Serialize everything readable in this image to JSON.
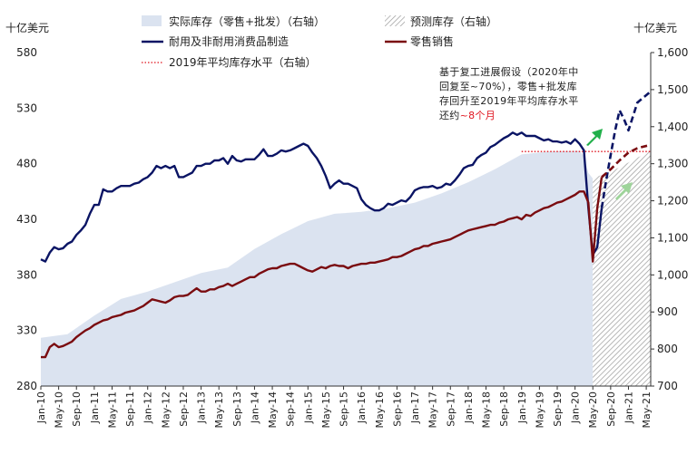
{
  "chart_data": {
    "type": "line",
    "unit_left": "十亿美元",
    "unit_right": "十亿美元",
    "left_axis": {
      "range": [
        280,
        580
      ],
      "ticks": [
        280,
        330,
        380,
        430,
        480,
        530,
        580
      ]
    },
    "right_axis": {
      "range": [
        700,
        1600
      ],
      "ticks": [
        "700",
        "800",
        "900",
        "1,000",
        "1,100",
        "1,200",
        "1,300",
        "1,400",
        "1,500",
        "1,600"
      ]
    },
    "x_tick_labels": [
      "Jan-10",
      "May-10",
      "Sep-10",
      "Jan-11",
      "May-11",
      "Sep-11",
      "Jan-12",
      "May-12",
      "Sep-12",
      "Jan-13",
      "May-13",
      "Sep-13",
      "Jan-14",
      "May-14",
      "Sep-14",
      "Jan-15",
      "May-15",
      "Sep-15",
      "Jan-16",
      "May-16",
      "Sep-16",
      "Jan-17",
      "May-17",
      "Sep-17",
      "Jan-18",
      "May-18",
      "Sep-18",
      "Jan-19",
      "May-19",
      "Sep-19",
      "Jan-20",
      "May-20",
      "Sep-20",
      "Jan-21",
      "May-21"
    ],
    "x_start": "2010-01",
    "x_end": "2021-06",
    "legend": {
      "inventory": "实际库存（零售+批发）（右轴）",
      "forecast": "预测库存（右轴）",
      "durable": "耐用及非耐用消费品制造",
      "retail": "零售销售",
      "avg": "2019年平均库存水平（右轴）"
    },
    "annotation": {
      "line1": "基于复工进展假设（2020年中",
      "line2": "回复至~70%），零售+批发库",
      "line3": "存回升至2019年平均库存水平",
      "line4_prefix": "还约",
      "line4_highlight": "~8个月"
    },
    "avg_inventory_2019": 1333,
    "series": [
      {
        "name": "实际库存（零售+批发）（右轴）",
        "axis": "right",
        "type": "area",
        "x": [
          "2010-01",
          "2010-07",
          "2011-01",
          "2011-07",
          "2012-01",
          "2012-07",
          "2013-01",
          "2013-07",
          "2014-01",
          "2014-07",
          "2015-01",
          "2015-07",
          "2016-01",
          "2016-07",
          "2017-01",
          "2017-07",
          "2018-01",
          "2018-07",
          "2019-01",
          "2019-07",
          "2020-01",
          "2020-02",
          "2020-03",
          "2020-04",
          "2020-05"
        ],
        "values": [
          830,
          840,
          890,
          935,
          955,
          980,
          1005,
          1020,
          1070,
          1110,
          1145,
          1165,
          1170,
          1180,
          1195,
          1220,
          1250,
          1285,
          1325,
          1333,
          1335,
          1335,
          1320,
          1275,
          1260
        ]
      },
      {
        "name": "预测库存（右轴）",
        "axis": "right",
        "type": "area",
        "x": [
          "2020-05",
          "2020-08",
          "2020-11",
          "2021-02",
          "2021-06"
        ],
        "values": [
          1260,
          1275,
          1290,
          1310,
          1335
        ]
      },
      {
        "name": "耐用及非耐用消费品制造",
        "axis": "left",
        "x": [
          "2010-01",
          "2010-02",
          "2010-03",
          "2010-04",
          "2010-05",
          "2010-06",
          "2010-07",
          "2010-08",
          "2010-09",
          "2010-10",
          "2010-11",
          "2010-12",
          "2011-01",
          "2011-02",
          "2011-03",
          "2011-04",
          "2011-05",
          "2011-06",
          "2011-07",
          "2011-08",
          "2011-09",
          "2011-10",
          "2011-11",
          "2011-12",
          "2012-01",
          "2012-02",
          "2012-03",
          "2012-04",
          "2012-05",
          "2012-06",
          "2012-07",
          "2012-08",
          "2012-09",
          "2012-10",
          "2012-11",
          "2012-12",
          "2013-01",
          "2013-02",
          "2013-03",
          "2013-04",
          "2013-05",
          "2013-06",
          "2013-07",
          "2013-08",
          "2013-09",
          "2013-10",
          "2013-11",
          "2013-12",
          "2014-01",
          "2014-02",
          "2014-03",
          "2014-04",
          "2014-05",
          "2014-06",
          "2014-07",
          "2014-08",
          "2014-09",
          "2014-10",
          "2014-11",
          "2014-12",
          "2015-01",
          "2015-02",
          "2015-03",
          "2015-04",
          "2015-05",
          "2015-06",
          "2015-07",
          "2015-08",
          "2015-09",
          "2015-10",
          "2015-11",
          "2015-12",
          "2016-01",
          "2016-02",
          "2016-03",
          "2016-04",
          "2016-05",
          "2016-06",
          "2016-07",
          "2016-08",
          "2016-09",
          "2016-10",
          "2016-11",
          "2016-12",
          "2017-01",
          "2017-02",
          "2017-03",
          "2017-04",
          "2017-05",
          "2017-06",
          "2017-07",
          "2017-08",
          "2017-09",
          "2017-10",
          "2017-11",
          "2017-12",
          "2018-01",
          "2018-02",
          "2018-03",
          "2018-04",
          "2018-05",
          "2018-06",
          "2018-07",
          "2018-08",
          "2018-09",
          "2018-10",
          "2018-11",
          "2018-12",
          "2019-01",
          "2019-02",
          "2019-03",
          "2019-04",
          "2019-05",
          "2019-06",
          "2019-07",
          "2019-08",
          "2019-09",
          "2019-10",
          "2019-11",
          "2019-12",
          "2020-01",
          "2020-02",
          "2020-03",
          "2020-04",
          "2020-05",
          "2020-06",
          "2020-07"
        ],
        "values": [
          394,
          392,
          400,
          405,
          403,
          404,
          408,
          410,
          416,
          420,
          425,
          435,
          443,
          443,
          457,
          455,
          455,
          458,
          460,
          460,
          460,
          462,
          463,
          466,
          468,
          472,
          478,
          476,
          478,
          476,
          478,
          468,
          468,
          470,
          472,
          478,
          478,
          480,
          480,
          483,
          483,
          485,
          480,
          487,
          483,
          482,
          484,
          484,
          484,
          488,
          493,
          487,
          487,
          489,
          492,
          491,
          492,
          494,
          496,
          498,
          496,
          490,
          485,
          478,
          469,
          458,
          462,
          465,
          462,
          462,
          460,
          458,
          448,
          443,
          440,
          438,
          438,
          440,
          444,
          443,
          445,
          447,
          446,
          450,
          456,
          458,
          459,
          459,
          460,
          458,
          459,
          462,
          461,
          465,
          470,
          476,
          478,
          479,
          485,
          488,
          490,
          495,
          497,
          500,
          503,
          505,
          508,
          506,
          508,
          505,
          505,
          505,
          503,
          501,
          502,
          500,
          500,
          499,
          500,
          498,
          502,
          498,
          492,
          440,
          398,
          405,
          440
        ]
      },
      {
        "name": "耐用及非耐用消费品制造 (预测)",
        "axis": "left",
        "dashed": true,
        "x": [
          "2020-07",
          "2020-08",
          "2020-09",
          "2020-10",
          "2020-11",
          "2020-12",
          "2021-01",
          "2021-03",
          "2021-06"
        ],
        "values": [
          440,
          465,
          488,
          510,
          528,
          520,
          510,
          535,
          545
        ]
      },
      {
        "name": "零售销售",
        "axis": "left",
        "x": [
          "2010-01",
          "2010-02",
          "2010-03",
          "2010-04",
          "2010-05",
          "2010-06",
          "2010-07",
          "2010-08",
          "2010-09",
          "2010-10",
          "2010-11",
          "2010-12",
          "2011-01",
          "2011-02",
          "2011-03",
          "2011-04",
          "2011-05",
          "2011-06",
          "2011-07",
          "2011-08",
          "2011-09",
          "2011-10",
          "2011-11",
          "2011-12",
          "2012-01",
          "2012-02",
          "2012-03",
          "2012-04",
          "2012-05",
          "2012-06",
          "2012-07",
          "2012-08",
          "2012-09",
          "2012-10",
          "2012-11",
          "2012-12",
          "2013-01",
          "2013-02",
          "2013-03",
          "2013-04",
          "2013-05",
          "2013-06",
          "2013-07",
          "2013-08",
          "2013-09",
          "2013-10",
          "2013-11",
          "2013-12",
          "2014-01",
          "2014-02",
          "2014-03",
          "2014-04",
          "2014-05",
          "2014-06",
          "2014-07",
          "2014-08",
          "2014-09",
          "2014-10",
          "2014-11",
          "2014-12",
          "2015-01",
          "2015-02",
          "2015-03",
          "2015-04",
          "2015-05",
          "2015-06",
          "2015-07",
          "2015-08",
          "2015-09",
          "2015-10",
          "2015-11",
          "2015-12",
          "2016-01",
          "2016-02",
          "2016-03",
          "2016-04",
          "2016-05",
          "2016-06",
          "2016-07",
          "2016-08",
          "2016-09",
          "2016-10",
          "2016-11",
          "2016-12",
          "2017-01",
          "2017-02",
          "2017-03",
          "2017-04",
          "2017-05",
          "2017-06",
          "2017-07",
          "2017-08",
          "2017-09",
          "2017-10",
          "2017-11",
          "2017-12",
          "2018-01",
          "2018-02",
          "2018-03",
          "2018-04",
          "2018-05",
          "2018-06",
          "2018-07",
          "2018-08",
          "2018-09",
          "2018-10",
          "2018-11",
          "2018-12",
          "2019-01",
          "2019-02",
          "2019-03",
          "2019-04",
          "2019-05",
          "2019-06",
          "2019-07",
          "2019-08",
          "2019-09",
          "2019-10",
          "2019-11",
          "2019-12",
          "2020-01",
          "2020-02",
          "2020-03",
          "2020-04",
          "2020-05",
          "2020-06",
          "2020-07"
        ],
        "values": [
          306,
          306,
          315,
          318,
          315,
          316,
          318,
          320,
          324,
          327,
          330,
          332,
          335,
          337,
          339,
          340,
          342,
          343,
          344,
          346,
          347,
          348,
          350,
          352,
          355,
          358,
          357,
          356,
          355,
          357,
          360,
          361,
          361,
          362,
          365,
          368,
          365,
          365,
          367,
          367,
          369,
          370,
          372,
          370,
          372,
          374,
          376,
          378,
          378,
          381,
          383,
          385,
          386,
          386,
          388,
          389,
          390,
          390,
          388,
          386,
          384,
          383,
          385,
          387,
          386,
          388,
          389,
          388,
          388,
          386,
          388,
          389,
          390,
          390,
          391,
          391,
          392,
          393,
          394,
          396,
          396,
          397,
          399,
          401,
          403,
          404,
          406,
          406,
          408,
          409,
          410,
          411,
          412,
          414,
          416,
          418,
          420,
          421,
          422,
          423,
          424,
          425,
          425,
          427,
          428,
          430,
          431,
          432,
          430,
          434,
          433,
          436,
          438,
          440,
          441,
          443,
          445,
          446,
          448,
          450,
          452,
          455,
          455,
          445,
          392,
          440,
          468
        ]
      },
      {
        "name": "零售销售 (预测)",
        "axis": "left",
        "dashed": true,
        "x": [
          "2020-07",
          "2020-09",
          "2020-11",
          "2021-01",
          "2021-03",
          "2021-06"
        ],
        "values": [
          468,
          475,
          483,
          490,
          494,
          497
        ]
      }
    ]
  }
}
